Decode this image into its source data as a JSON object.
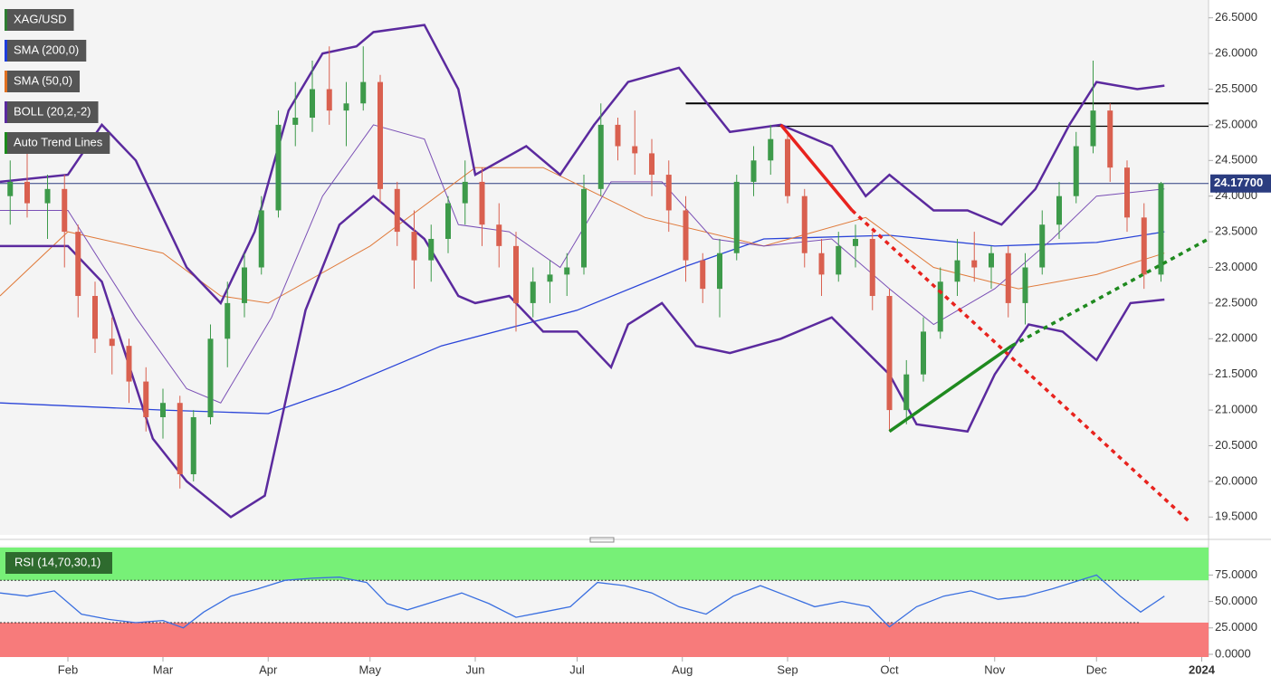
{
  "chart_data": {
    "type": "candlestick",
    "legend": [
      "XAG/USD",
      "SMA (200,0)",
      "SMA (50,0)",
      "BOLL (20,2,-2)",
      "Auto Trend Lines"
    ],
    "legend_colors": [
      "#2e7d32",
      "#1e3ddb",
      "#e07020",
      "#5b2a9e",
      "#1b8a1b"
    ],
    "xlim": [
      0,
      356
    ],
    "xticks": [
      {
        "value": 20,
        "label": "Feb"
      },
      {
        "value": 48,
        "label": "Mar"
      },
      {
        "value": 79,
        "label": "Apr"
      },
      {
        "value": 109,
        "label": "May"
      },
      {
        "value": 140,
        "label": "Jun"
      },
      {
        "value": 170,
        "label": "Jul"
      },
      {
        "value": 201,
        "label": "Aug"
      },
      {
        "value": 232,
        "label": "Sep"
      },
      {
        "value": 262,
        "label": "Oct"
      },
      {
        "value": 293,
        "label": "Nov"
      },
      {
        "value": 323,
        "label": "Dec"
      },
      {
        "value": 354,
        "label": "2024"
      }
    ],
    "ylim": [
      19.25,
      26.75
    ],
    "yticks": [
      {
        "value": 19.5,
        "label": "19.5000"
      },
      {
        "value": 20,
        "label": "20.0000"
      },
      {
        "value": 20.5,
        "label": "20.5000"
      },
      {
        "value": 21,
        "label": "21.0000"
      },
      {
        "value": 21.5,
        "label": "21.5000"
      },
      {
        "value": 22,
        "label": "22.0000"
      },
      {
        "value": 22.5,
        "label": "22.5000"
      },
      {
        "value": 23,
        "label": "23.0000"
      },
      {
        "value": 23.5,
        "label": "23.5000"
      },
      {
        "value": 24,
        "label": "24.0000"
      },
      {
        "value": 24.5,
        "label": "24.5000"
      },
      {
        "value": 25,
        "label": "25.0000"
      },
      {
        "value": 25.5,
        "label": "25.5000"
      },
      {
        "value": 26,
        "label": "26.0000"
      },
      {
        "value": 26.5,
        "label": "26.5000"
      }
    ],
    "up_color": "#3d9a4a",
    "down_color": "#d9604f",
    "candles": {
      "x": [
        3,
        8,
        14,
        19,
        23,
        28,
        33,
        38,
        43,
        48,
        53,
        57,
        62,
        67,
        72,
        77,
        82,
        87,
        92,
        97,
        102,
        107,
        112,
        117,
        122,
        127,
        132,
        137,
        142,
        147,
        152,
        157,
        162,
        167,
        172,
        177,
        182,
        187,
        192,
        197,
        202,
        207,
        212,
        217,
        222,
        227,
        232,
        237,
        242,
        247,
        252,
        257,
        262,
        267,
        272,
        277,
        282,
        287,
        292,
        297,
        302,
        307,
        312,
        317,
        322,
        327,
        332,
        337,
        342
      ],
      "open": [
        24.0,
        24.2,
        23.9,
        24.1,
        23.5,
        22.6,
        22.0,
        21.9,
        21.4,
        20.9,
        21.1,
        20.1,
        20.9,
        22.0,
        22.5,
        23.0,
        23.8,
        25.0,
        25.1,
        25.5,
        25.2,
        25.3,
        25.6,
        24.1,
        23.5,
        23.1,
        23.4,
        23.9,
        24.2,
        23.6,
        23.3,
        22.5,
        22.8,
        22.9,
        23.0,
        24.1,
        25.0,
        24.7,
        24.6,
        24.3,
        23.8,
        23.1,
        22.7,
        23.2,
        24.2,
        24.5,
        24.8,
        24.0,
        23.2,
        22.9,
        23.3,
        23.4,
        22.6,
        21.0,
        21.5,
        22.1,
        22.8,
        23.1,
        23.0,
        23.2,
        22.5,
        23.0,
        23.6,
        24.0,
        24.7,
        25.2,
        24.4,
        23.7,
        22.9
      ],
      "high": [
        24.5,
        24.6,
        24.3,
        24.3,
        23.6,
        22.8,
        22.3,
        22.0,
        21.6,
        21.3,
        21.2,
        21.0,
        22.2,
        22.8,
        23.2,
        24.0,
        25.2,
        25.6,
        25.9,
        26.1,
        25.6,
        26.1,
        25.7,
        24.2,
        23.8,
        23.6,
        24.0,
        24.5,
        24.4,
        23.9,
        23.5,
        23.0,
        23.1,
        23.2,
        24.3,
        25.3,
        25.1,
        25.2,
        24.8,
        24.5,
        24.0,
        23.2,
        23.4,
        24.3,
        24.7,
        25.0,
        24.9,
        24.1,
        23.4,
        23.5,
        23.6,
        23.5,
        22.7,
        21.7,
        22.3,
        23.0,
        23.4,
        23.5,
        23.3,
        23.3,
        23.2,
        23.8,
        24.2,
        24.9,
        25.9,
        25.3,
        24.5,
        23.9,
        24.2
      ],
      "low": [
        23.6,
        23.7,
        23.4,
        23.0,
        22.3,
        21.8,
        21.5,
        21.1,
        20.7,
        20.6,
        19.9,
        20.0,
        20.8,
        21.6,
        22.3,
        22.9,
        23.7,
        24.7,
        24.9,
        25.0,
        24.7,
        25.2,
        23.9,
        23.3,
        22.7,
        22.8,
        23.2,
        23.6,
        23.3,
        23.0,
        22.1,
        22.3,
        22.5,
        22.6,
        22.9,
        24.0,
        24.5,
        24.3,
        24.0,
        23.5,
        22.8,
        22.5,
        22.3,
        23.1,
        24.0,
        24.3,
        23.9,
        23.0,
        22.6,
        22.8,
        23.0,
        22.4,
        20.7,
        20.8,
        21.4,
        22.0,
        22.6,
        22.8,
        22.7,
        22.3,
        22.2,
        22.9,
        23.4,
        23.9,
        24.6,
        24.2,
        23.5,
        22.7,
        22.8
      ],
      "close": [
        24.2,
        23.9,
        24.1,
        23.5,
        22.6,
        22.0,
        21.9,
        21.4,
        20.9,
        21.1,
        20.1,
        20.9,
        22.0,
        22.5,
        23.0,
        23.8,
        25.0,
        25.1,
        25.5,
        25.2,
        25.3,
        25.6,
        24.1,
        23.5,
        23.1,
        23.4,
        23.9,
        24.2,
        23.6,
        23.3,
        22.5,
        22.8,
        22.9,
        23.0,
        24.1,
        25.0,
        24.7,
        24.6,
        24.3,
        23.8,
        23.1,
        22.7,
        23.2,
        24.2,
        24.5,
        24.8,
        24.0,
        23.2,
        22.9,
        23.3,
        23.4,
        22.6,
        21.0,
        21.5,
        22.1,
        22.8,
        23.1,
        23.0,
        23.2,
        22.5,
        23.0,
        23.6,
        24.0,
        24.7,
        25.2,
        24.4,
        23.7,
        22.9,
        24.18
      ]
    },
    "series": [
      {
        "name": "SMA (200,0)",
        "color": "#2a44d8",
        "width": 1.3,
        "x": [
          0,
          48,
          79,
          100,
          130,
          170,
          201,
          225,
          262,
          293,
          323,
          343
        ],
        "values": [
          21.1,
          21.0,
          20.95,
          21.3,
          21.9,
          22.4,
          23.0,
          23.4,
          23.45,
          23.3,
          23.35,
          23.5
        ]
      },
      {
        "name": "SMA (50,0)",
        "color": "#e07a3a",
        "width": 1,
        "x": [
          0,
          20,
          48,
          65,
          79,
          109,
          140,
          160,
          190,
          225,
          255,
          275,
          300,
          323,
          343
        ],
        "values": [
          22.6,
          23.5,
          23.2,
          22.6,
          22.5,
          23.3,
          24.4,
          24.4,
          23.7,
          23.3,
          23.7,
          23.0,
          22.7,
          22.9,
          23.2
        ]
      },
      {
        "name": "BOLL upper",
        "color": "#5b2a9e",
        "width": 2.5,
        "x": [
          0,
          20,
          30,
          40,
          55,
          65,
          75,
          85,
          95,
          105,
          110,
          125,
          135,
          140,
          155,
          165,
          175,
          185,
          200,
          215,
          230,
          245,
          255,
          262,
          275,
          285,
          295,
          305,
          315,
          323,
          335,
          343
        ],
        "values": [
          24.2,
          24.3,
          25.0,
          24.5,
          23.0,
          22.5,
          23.5,
          25.2,
          26.0,
          26.1,
          26.3,
          26.4,
          25.5,
          24.3,
          24.7,
          24.3,
          25.0,
          25.6,
          25.8,
          24.9,
          25.0,
          24.7,
          24.0,
          24.3,
          23.8,
          23.8,
          23.6,
          24.1,
          25.0,
          25.6,
          25.5,
          25.55
        ]
      },
      {
        "name": "BOLL middle",
        "color": "#7a4fb5",
        "width": 1,
        "x": [
          0,
          20,
          40,
          55,
          65,
          80,
          95,
          110,
          125,
          135,
          150,
          165,
          180,
          195,
          210,
          225,
          245,
          262,
          275,
          293,
          310,
          323,
          343
        ],
        "values": [
          23.8,
          23.8,
          22.3,
          21.3,
          21.1,
          22.3,
          24.0,
          25.0,
          24.8,
          23.6,
          23.5,
          23.0,
          24.2,
          24.2,
          23.4,
          23.3,
          23.4,
          22.7,
          22.2,
          22.7,
          23.4,
          24.0,
          24.1
        ]
      },
      {
        "name": "BOLL lower",
        "color": "#5b2a9e",
        "width": 2.5,
        "x": [
          0,
          20,
          30,
          45,
          55,
          68,
          78,
          90,
          100,
          110,
          125,
          135,
          140,
          150,
          160,
          170,
          180,
          185,
          195,
          205,
          215,
          230,
          245,
          262,
          270,
          285,
          293,
          303,
          313,
          323,
          333,
          343
        ],
        "values": [
          23.3,
          23.3,
          22.8,
          20.6,
          20.0,
          19.5,
          19.8,
          22.4,
          23.6,
          24.0,
          23.4,
          22.6,
          22.5,
          22.6,
          22.1,
          22.1,
          21.6,
          22.2,
          22.5,
          21.9,
          21.8,
          22.0,
          22.3,
          21.5,
          20.8,
          20.7,
          21.5,
          22.2,
          22.1,
          21.7,
          22.5,
          22.55
        ]
      }
    ],
    "levels": [
      {
        "value": 25.3,
        "from": 202,
        "width": 2
      },
      {
        "value": 24.98,
        "from": 228,
        "width": 1.2
      }
    ],
    "last_price": {
      "value": 24.177,
      "label": "24.17700"
    },
    "trend_lines": [
      {
        "color": "#e8231e",
        "x": [
          230,
          251,
          350
        ],
        "values": [
          25.0,
          23.8,
          19.45
        ]
      },
      {
        "color": "#1f8a1f",
        "x": [
          262,
          298,
          356
        ],
        "values": [
          20.7,
          21.9,
          23.4
        ]
      }
    ],
    "rsi": {
      "label": "RSI (14,70,30,1)",
      "color": "#3a6fe0",
      "ylim": [
        0,
        101
      ],
      "upper": 70,
      "lower": 30,
      "yticks": [
        {
          "value": 0,
          "label": "0.0000"
        },
        {
          "value": 25,
          "label": "25.0000"
        },
        {
          "value": 50,
          "label": "50.0000"
        },
        {
          "value": 75,
          "label": "75.0000"
        }
      ],
      "x": [
        0,
        8,
        16,
        24,
        32,
        40,
        48,
        54,
        60,
        68,
        76,
        84,
        92,
        100,
        108,
        114,
        120,
        128,
        136,
        144,
        152,
        160,
        168,
        176,
        184,
        192,
        200,
        208,
        216,
        224,
        232,
        240,
        248,
        256,
        262,
        270,
        278,
        286,
        294,
        302,
        310,
        318,
        323,
        330,
        336,
        343
      ],
      "values": [
        58,
        55,
        60,
        38,
        33,
        30,
        32,
        25,
        40,
        55,
        62,
        70,
        72,
        73,
        68,
        48,
        42,
        50,
        58,
        48,
        35,
        40,
        45,
        68,
        65,
        58,
        45,
        38,
        55,
        65,
        55,
        45,
        50,
        45,
        26,
        45,
        55,
        60,
        52,
        55,
        62,
        70,
        75,
        55,
        40,
        55
      ]
    }
  }
}
